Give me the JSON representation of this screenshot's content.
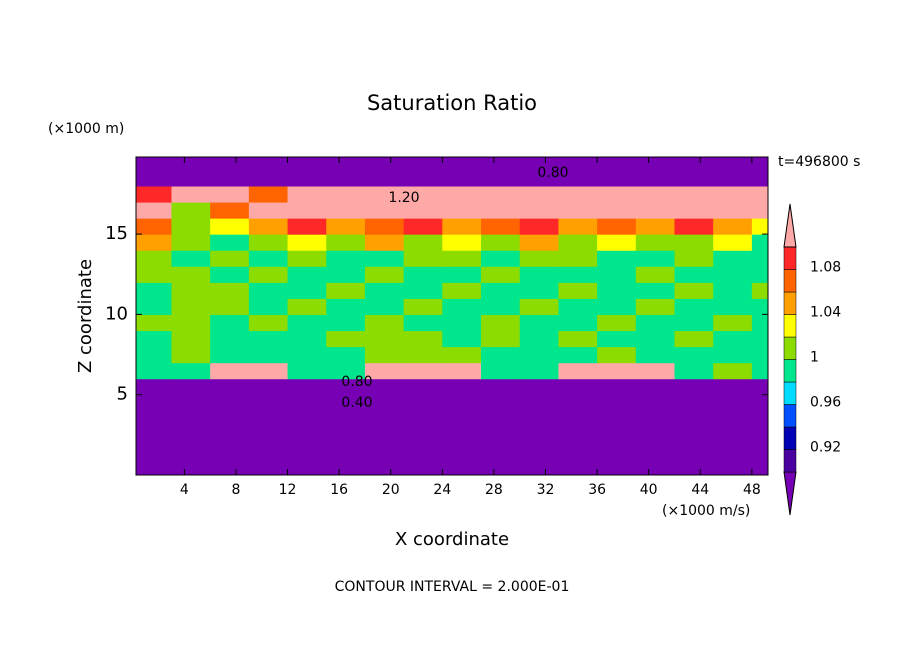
{
  "chart_data": {
    "type": "contour",
    "title": "Saturation Ratio",
    "x_label": "X coordinate",
    "y_label": "Z coordinate",
    "x_unit": "(×1000 m/s)",
    "y_unit": "(×1000 m)",
    "time_label": "t=496800 s",
    "footer": "CONTOUR INTERVAL = 2.000E-01",
    "contour_labels": [
      "0.80",
      "1.20",
      "0.80",
      "0.40"
    ],
    "xlim": [
      0.25,
      49.25
    ],
    "ylim": [
      0,
      19.8
    ],
    "xticks": [
      4,
      8,
      12,
      16,
      20,
      24,
      28,
      32,
      36,
      40,
      44,
      48
    ],
    "yticks": [
      5,
      10,
      15
    ],
    "levels": [
      0.9,
      0.92,
      0.94,
      0.96,
      0.98,
      1,
      1.02,
      1.04,
      1.06,
      1.08,
      1.1
    ],
    "colors": [
      "#7800b4",
      "#4b00a0",
      "#0000b4",
      "#0050ff",
      "#00dcff",
      "#00e68c",
      "#8cdc00",
      "#ffff00",
      "#ffa000",
      "#ff6400",
      "#ff2828",
      "#ffa8a8"
    ],
    "cbar_ticks": [
      0.92,
      0.96,
      1,
      1.04,
      1.08
    ],
    "x": [
      1.5,
      4.5,
      7.5,
      10.5,
      13.5,
      16.5,
      19.5,
      22.5,
      25.5,
      28.5,
      31.5,
      34.5,
      37.5,
      40.5,
      43.5,
      46.5,
      49.5
    ],
    "y": [
      0.5,
      1.5,
      2.5,
      3.5,
      4.5,
      5.5,
      6.5,
      7.5,
      8.5,
      9.5,
      10.5,
      11.5,
      12.5,
      13.5,
      14.5,
      15.5,
      16.5,
      17.5,
      18.5,
      19.5
    ],
    "z": [
      [
        0.45,
        0.45,
        0.45,
        0.45,
        0.45,
        0.45,
        0.45,
        0.45,
        0.45,
        0.45,
        0.45,
        0.45,
        0.45,
        0.45,
        0.45,
        0.45,
        0.45
      ],
      [
        0.45,
        0.45,
        0.45,
        0.45,
        0.45,
        0.45,
        0.45,
        0.45,
        0.45,
        0.45,
        0.45,
        0.45,
        0.45,
        0.45,
        0.45,
        0.45,
        0.45
      ],
      [
        0.45,
        0.45,
        0.45,
        0.45,
        0.45,
        0.45,
        0.45,
        0.45,
        0.45,
        0.45,
        0.45,
        0.45,
        0.45,
        0.45,
        0.45,
        0.45,
        0.45
      ],
      [
        0.6,
        0.6,
        0.6,
        0.6,
        0.6,
        0.6,
        0.6,
        0.6,
        0.6,
        0.6,
        0.6,
        0.6,
        0.6,
        0.6,
        0.6,
        0.6,
        0.6
      ],
      [
        0.6,
        0.6,
        0.6,
        0.6,
        0.6,
        0.6,
        0.6,
        0.6,
        0.6,
        0.6,
        0.6,
        0.6,
        0.6,
        0.6,
        0.6,
        0.6,
        0.6
      ],
      [
        0.85,
        0.85,
        0.85,
        0.85,
        0.85,
        0.85,
        0.85,
        0.85,
        0.85,
        0.85,
        0.85,
        0.85,
        0.85,
        0.85,
        0.85,
        0.85,
        0.85
      ],
      [
        0.99,
        0.99,
        1.12,
        1.12,
        0.99,
        0.99,
        1.12,
        1.12,
        1.12,
        0.99,
        0.99,
        1.12,
        1.12,
        1.12,
        0.99,
        1.01,
        0.99
      ],
      [
        0.99,
        1.01,
        0.99,
        0.99,
        0.99,
        0.99,
        1.01,
        1.01,
        1.01,
        0.99,
        0.99,
        0.99,
        1.01,
        0.99,
        0.99,
        0.99,
        0.99
      ],
      [
        0.99,
        1.01,
        0.99,
        0.99,
        0.99,
        1.01,
        1.01,
        1.01,
        0.99,
        1.01,
        0.99,
        1.01,
        0.99,
        0.99,
        1.01,
        0.99,
        0.99
      ],
      [
        1.01,
        1.01,
        0.99,
        1.01,
        0.99,
        0.99,
        1.01,
        0.99,
        0.99,
        1.01,
        0.99,
        0.99,
        1.01,
        0.99,
        0.99,
        1.01,
        0.99
      ],
      [
        0.99,
        1.01,
        1.01,
        0.99,
        1.01,
        0.99,
        0.99,
        1.01,
        0.99,
        0.99,
        1.01,
        0.99,
        0.99,
        1.01,
        0.99,
        0.99,
        0.99
      ],
      [
        0.99,
        1.01,
        1.01,
        0.99,
        0.99,
        1.01,
        0.99,
        0.99,
        1.01,
        0.99,
        0.99,
        1.01,
        0.99,
        0.99,
        1.01,
        0.99,
        1.01
      ],
      [
        1.01,
        1.01,
        0.99,
        1.01,
        0.99,
        0.99,
        1.01,
        0.99,
        0.99,
        1.01,
        0.99,
        0.99,
        0.99,
        1.01,
        0.99,
        0.99,
        0.99
      ],
      [
        1.01,
        0.99,
        1.01,
        0.99,
        1.01,
        0.99,
        0.99,
        1.01,
        1.01,
        0.99,
        1.01,
        1.01,
        0.99,
        0.99,
        1.01,
        0.99,
        0.99
      ],
      [
        1.05,
        1.01,
        0.99,
        1.01,
        1.03,
        1.01,
        1.05,
        1.01,
        1.03,
        1.01,
        1.05,
        1.01,
        1.03,
        1.01,
        1.01,
        1.03,
        0.99
      ],
      [
        1.07,
        1.01,
        1.03,
        1.05,
        1.09,
        1.05,
        1.07,
        1.09,
        1.05,
        1.07,
        1.09,
        1.05,
        1.07,
        1.05,
        1.09,
        1.05,
        1.03
      ],
      [
        1.12,
        1.01,
        1.07,
        1.12,
        1.12,
        1.12,
        1.12,
        1.12,
        1.12,
        1.12,
        1.12,
        1.12,
        1.12,
        1.12,
        1.12,
        1.12,
        1.12
      ],
      [
        1.09,
        1.12,
        1.12,
        1.07,
        1.12,
        1.12,
        1.12,
        1.12,
        1.12,
        1.12,
        1.12,
        1.12,
        1.12,
        1.12,
        1.12,
        1.12,
        1.12
      ],
      [
        0.85,
        0.85,
        0.85,
        0.85,
        0.85,
        0.85,
        0.85,
        0.85,
        0.85,
        0.85,
        0.85,
        0.85,
        0.85,
        0.85,
        0.85,
        0.85,
        0.85
      ],
      [
        0.7,
        0.7,
        0.7,
        0.7,
        0.7,
        0.7,
        0.7,
        0.7,
        0.7,
        0.7,
        0.7,
        0.7,
        0.7,
        0.7,
        0.7,
        0.7,
        0.7
      ]
    ]
  }
}
